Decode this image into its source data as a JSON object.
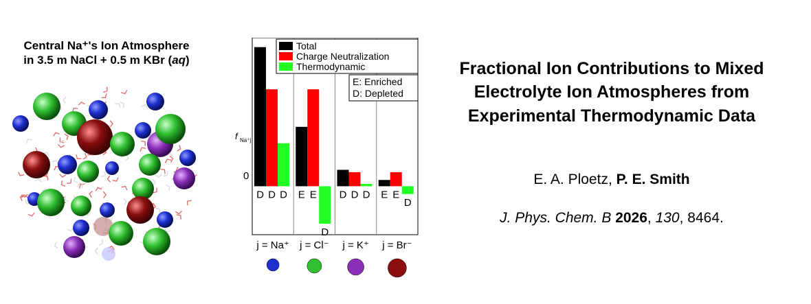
{
  "molecule_panel": {
    "title_line1": "Central Na⁺'s Ion Atmosphere",
    "title_line2_prefix": "in 3.5 m NaCl + 0.5 m KBr (",
    "title_line2_italic": "aq",
    "title_line2_suffix": ")"
  },
  "chart_data": {
    "type": "bar",
    "ylabel": "f",
    "ylabel_sub": "Na⁺j",
    "zero_label": "0",
    "y_domain": [
      -0.62,
      1.9
    ],
    "categories": [
      "j = Na⁺",
      "j = Cl⁻",
      "j = K⁺",
      "j = Br⁻"
    ],
    "category_icon_colors": [
      "#1f2fd0",
      "#2fbf2f",
      "#8a2fb8",
      "#8b0e0e"
    ],
    "series": [
      {
        "name": "Total",
        "color": "#000000",
        "values": [
          1.78,
          0.76,
          0.21,
          0.08
        ],
        "marks": [
          "D",
          "E",
          "D",
          "E"
        ]
      },
      {
        "name": "Charge Neutralization",
        "color": "#ff0000",
        "values": [
          1.24,
          1.24,
          0.18,
          0.18
        ],
        "marks": [
          "D",
          "E",
          "D",
          "E"
        ]
      },
      {
        "name": "Thermodynamic",
        "color": "#22ff22",
        "values": [
          0.55,
          -0.48,
          0.03,
          -0.1
        ],
        "marks": [
          "D",
          "D",
          "D",
          "D"
        ]
      }
    ],
    "legend_placement": "top-right",
    "annotation_lines": [
      "E: Enriched",
      "D: Depleted"
    ]
  },
  "paper": {
    "title_lines": [
      "Fractional Ion Contributions to Mixed",
      "Electrolyte Ion Atmospheres from",
      "Experimental Thermodynamic Data"
    ],
    "authors_prefix": "E. A. Ploetz, ",
    "authors_bold": "P. E. Smith",
    "journal_name": "J. Phys. Chem. B",
    "year": "2026",
    "volume": "130",
    "pages": "8464."
  }
}
